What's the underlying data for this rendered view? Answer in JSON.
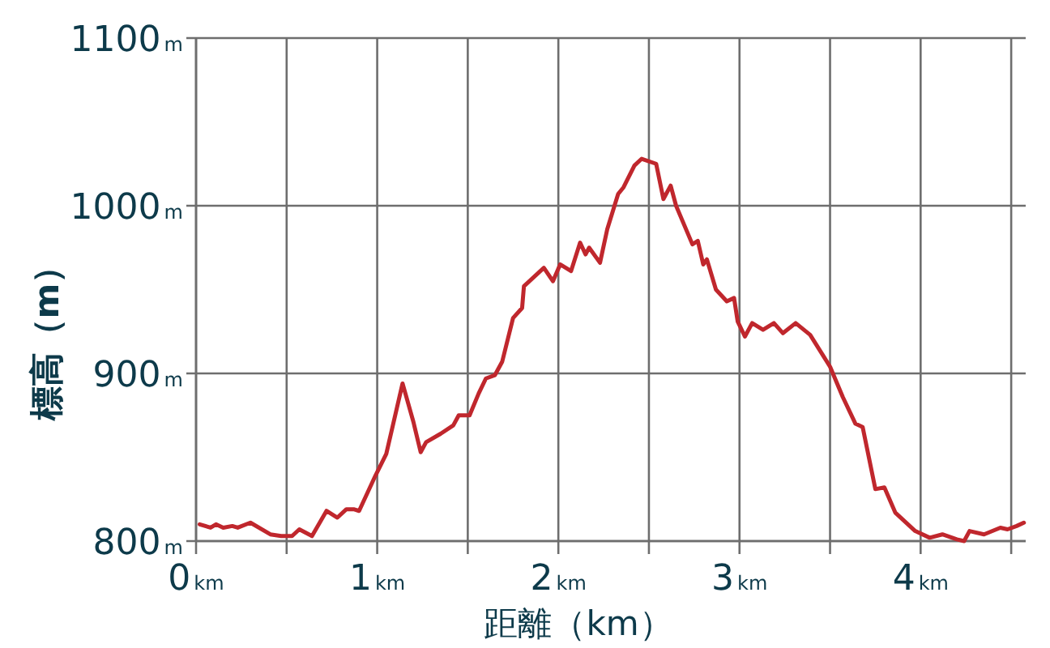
{
  "chart_data": {
    "type": "line",
    "xlabel": "距離（km）",
    "ylabel": "標高（m）",
    "x": [
      0.02,
      0.08,
      0.11,
      0.15,
      0.2,
      0.23,
      0.3,
      0.41,
      0.47,
      0.53,
      0.57,
      0.64,
      0.72,
      0.78,
      0.83,
      0.87,
      0.9,
      0.99,
      1.05,
      1.14,
      1.2,
      1.24,
      1.27,
      1.35,
      1.42,
      1.45,
      1.51,
      1.56,
      1.6,
      1.65,
      1.69,
      1.75,
      1.8,
      1.81,
      1.92,
      1.97,
      2.01,
      2.07,
      2.12,
      2.15,
      2.17,
      2.23,
      2.27,
      2.33,
      2.36,
      2.42,
      2.46,
      2.54,
      2.58,
      2.62,
      2.65,
      2.74,
      2.77,
      2.8,
      2.82,
      2.87,
      2.93,
      2.97,
      2.99,
      3.03,
      3.07,
      3.13,
      3.19,
      3.24,
      3.31,
      3.39,
      3.5,
      3.57,
      3.64,
      3.68,
      3.75,
      3.8,
      3.86,
      3.97,
      4.05,
      4.12,
      4.2,
      4.24,
      4.27,
      4.35,
      4.44,
      4.48,
      4.53,
      4.57
    ],
    "series": [
      {
        "color": "#c0272d",
        "values": [
          810,
          808,
          810,
          808,
          809,
          808,
          811,
          804,
          803,
          803,
          807,
          803,
          818,
          814,
          819,
          819,
          818,
          839,
          852,
          894,
          871,
          853,
          859,
          864,
          869,
          875,
          875,
          888,
          897,
          899,
          907,
          933,
          939,
          952,
          963,
          955,
          965,
          961,
          978,
          971,
          975,
          966,
          986,
          1007,
          1011,
          1024,
          1028,
          1025,
          1004,
          1012,
          1000,
          977,
          979,
          965,
          968,
          950,
          943,
          945,
          931,
          922,
          930,
          926,
          930,
          924,
          930,
          923,
          904,
          886,
          870,
          868,
          831,
          832,
          817,
          806,
          802,
          804,
          801,
          800,
          806,
          804,
          808,
          807,
          809,
          811
        ]
      }
    ],
    "xlim": [
      0,
      4.58
    ],
    "ylim": [
      800,
      1100
    ],
    "xticks": [
      {
        "value": 0,
        "label": "0km"
      },
      {
        "value": 0.5,
        "label": null
      },
      {
        "value": 1,
        "label": "1km"
      },
      {
        "value": 1.5,
        "label": null
      },
      {
        "value": 2,
        "label": "2km"
      },
      {
        "value": 2.5,
        "label": null
      },
      {
        "value": 3,
        "label": "3km"
      },
      {
        "value": 3.5,
        "label": null
      },
      {
        "value": 4,
        "label": "4km"
      },
      {
        "value": 4.5,
        "label": null
      }
    ],
    "yticks": [
      {
        "value": 800,
        "label": "800m"
      },
      {
        "value": 900,
        "label": "900m"
      },
      {
        "value": 1000,
        "label": "1000m"
      },
      {
        "value": 1100,
        "label": "1100m"
      }
    ],
    "grid": true,
    "marker": "none",
    "line_style": "solid"
  }
}
